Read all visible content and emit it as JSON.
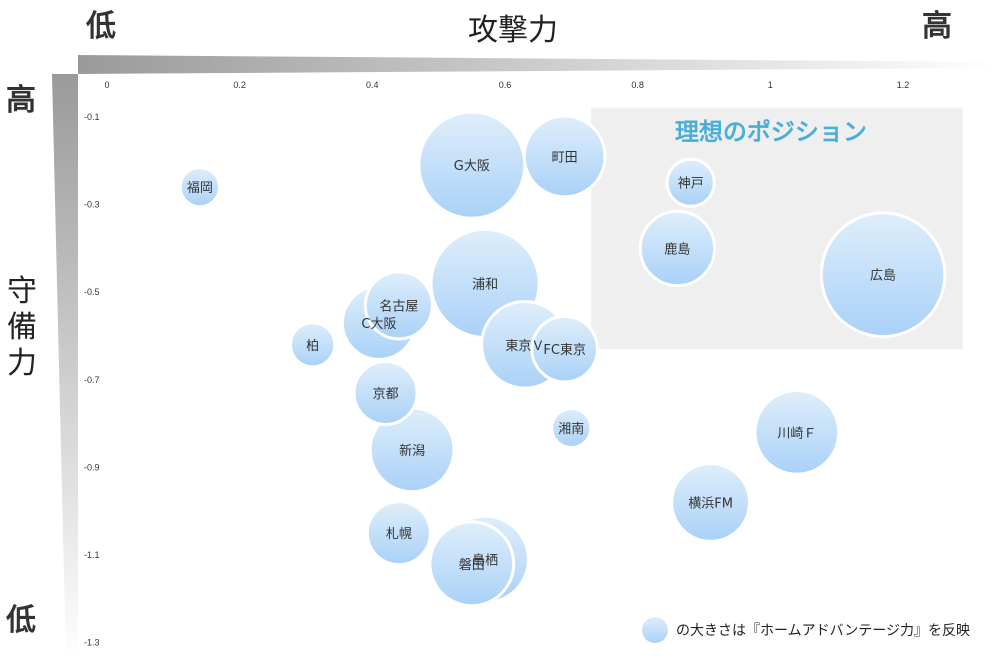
{
  "axis_labels": {
    "x_title": "攻撃力",
    "x_low": "低",
    "x_high": "高",
    "y_title": "守備力",
    "y_high": "高",
    "y_low": "低"
  },
  "ideal_zone_label": "理想のポジション",
  "legend_text": "の大きさは『ホームアドバンテージ力』を反映",
  "colors": {
    "bubble_fill_top": "#dfeefb",
    "bubble_fill_bottom": "#a9d1f7",
    "ideal_zone": "#efefef",
    "ideal_label": "#4aaed8"
  },
  "chart_data": {
    "type": "scatter",
    "xlim": [
      0,
      1.3
    ],
    "ylim": [
      -1.3,
      -0.1
    ],
    "x_ticks": [
      "0",
      "0.2",
      "0.4",
      "0.6",
      "0.8",
      "1",
      "1.2"
    ],
    "y_ticks": [
      "-0.1",
      "-0.3",
      "-0.5",
      "-0.7",
      "-0.9",
      "-1.1",
      "-1.3"
    ],
    "x_tick_values": [
      0,
      0.2,
      0.4,
      0.6,
      0.8,
      1,
      1.2
    ],
    "y_tick_values": [
      -0.1,
      -0.3,
      -0.5,
      -0.7,
      -0.9,
      -1.1,
      -1.3
    ],
    "ideal_zone": {
      "x": [
        0.73,
        1.29
      ],
      "y": [
        -0.08,
        -0.63
      ]
    },
    "points": [
      {
        "label": "福岡",
        "x": 0.14,
        "y": -0.26,
        "size": 0.05
      },
      {
        "label": "G大阪",
        "x": 0.55,
        "y": -0.21,
        "size": 1.0
      },
      {
        "label": "町田",
        "x": 0.69,
        "y": -0.19,
        "size": 0.5
      },
      {
        "label": "神戸",
        "x": 0.88,
        "y": -0.25,
        "size": 0.1
      },
      {
        "label": "鹿島",
        "x": 0.86,
        "y": -0.4,
        "size": 0.4
      },
      {
        "label": "広島",
        "x": 1.17,
        "y": -0.46,
        "size": 1.45
      },
      {
        "label": "浦和",
        "x": 0.57,
        "y": -0.48,
        "size": 1.05
      },
      {
        "label": "名古屋",
        "x": 0.44,
        "y": -0.53,
        "size": 0.3
      },
      {
        "label": "C大阪",
        "x": 0.41,
        "y": -0.57,
        "size": 0.38
      },
      {
        "label": "柏",
        "x": 0.31,
        "y": -0.62,
        "size": 0.08
      },
      {
        "label": "東京Ｖ",
        "x": 0.63,
        "y": -0.62,
        "size": 0.6
      },
      {
        "label": "FC東京",
        "x": 0.69,
        "y": -0.63,
        "size": 0.28
      },
      {
        "label": "京都",
        "x": 0.42,
        "y": -0.73,
        "size": 0.25
      },
      {
        "label": "湘南",
        "x": 0.7,
        "y": -0.81,
        "size": 0.05
      },
      {
        "label": "川崎Ｆ",
        "x": 1.04,
        "y": -0.82,
        "size": 0.55
      },
      {
        "label": "新潟",
        "x": 0.46,
        "y": -0.86,
        "size": 0.55
      },
      {
        "label": "横浜FM",
        "x": 0.91,
        "y": -0.98,
        "size": 0.45
      },
      {
        "label": "札幌",
        "x": 0.44,
        "y": -1.05,
        "size": 0.25
      },
      {
        "label": "磐田",
        "x": 0.55,
        "y": -1.12,
        "size": 0.55
      },
      {
        "label": "鳥栖",
        "x": 0.57,
        "y": -1.11,
        "size": 0.6
      }
    ]
  }
}
